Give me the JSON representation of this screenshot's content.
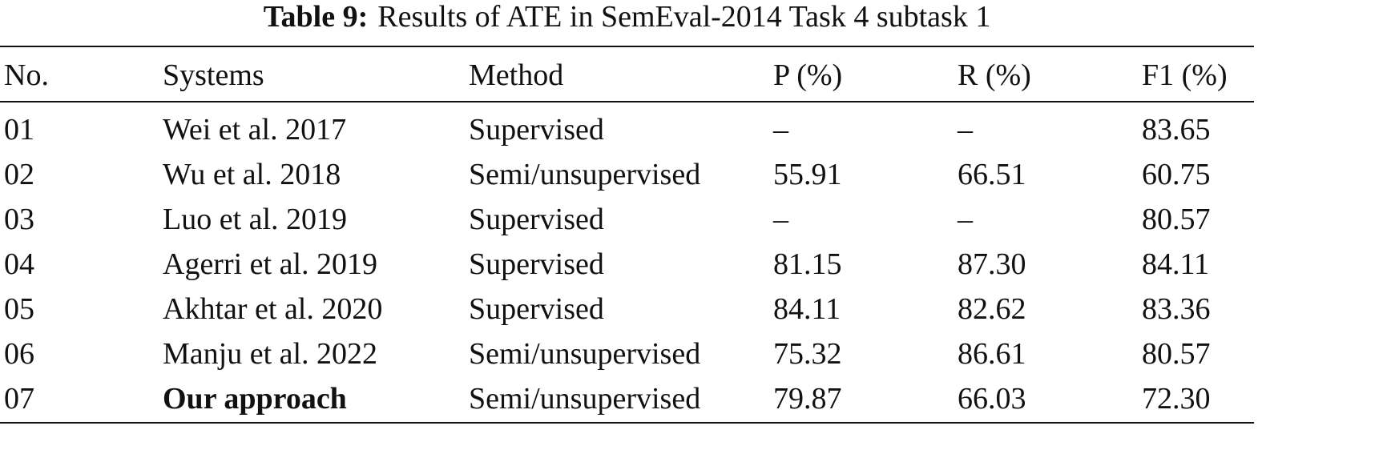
{
  "caption": {
    "label": "Table 9:",
    "text": "Results of ATE in SemEval-2014 Task 4 subtask 1"
  },
  "table": {
    "header": [
      "No.",
      "Systems",
      "Method",
      "P (%)",
      "R (%)",
      "F1 (%)"
    ],
    "rows": [
      [
        "01",
        "Wei et al. 2017",
        "Supervised",
        "–",
        "–",
        "83.65"
      ],
      [
        "02",
        "Wu et al. 2018",
        "Semi/unsupervised",
        "55.91",
        "66.51",
        "60.75"
      ],
      [
        "03",
        "Luo et al. 2019",
        "Supervised",
        "–",
        "–",
        "80.57"
      ],
      [
        "04",
        "Agerri et al. 2019",
        "Supervised",
        "81.15",
        "87.30",
        "84.11"
      ],
      [
        "05",
        "Akhtar et al. 2020",
        "Supervised",
        "84.11",
        "82.62",
        "83.36"
      ],
      [
        "06",
        "Manju et al. 2022",
        "Semi/unsupervised",
        "75.32",
        "86.61",
        "80.57"
      ],
      [
        "07",
        "Our approach",
        "Semi/unsupervised",
        "79.87",
        "66.03",
        "72.30"
      ]
    ]
  }
}
